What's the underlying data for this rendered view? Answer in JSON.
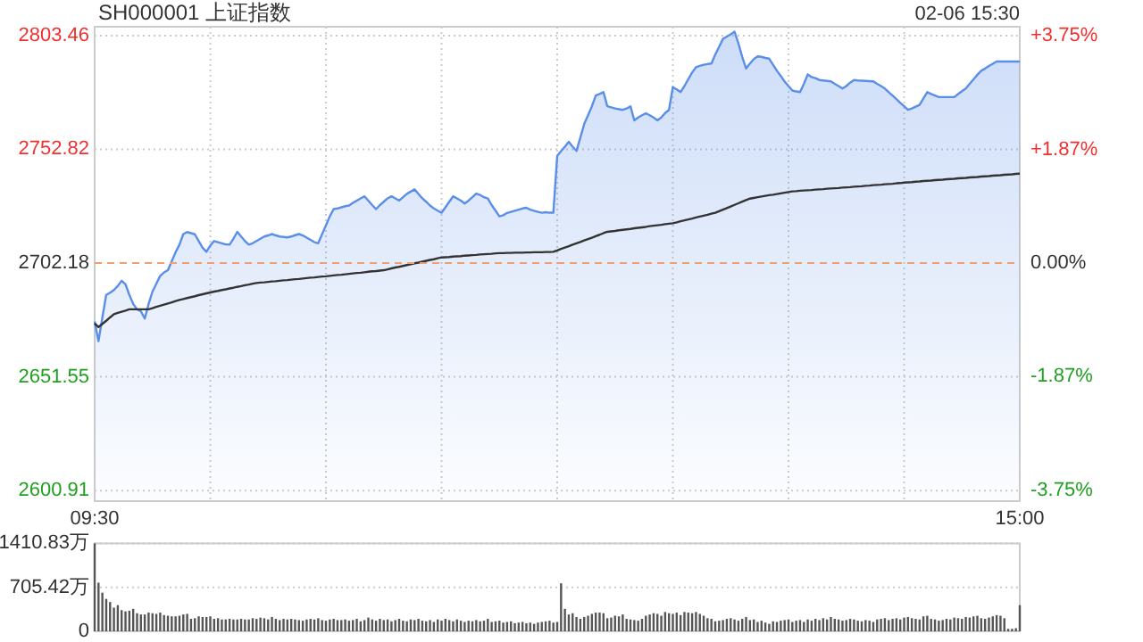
{
  "chart_data": [
    {
      "type": "line",
      "title": "SH000001 上证指数",
      "annotations": [
        "02-06 15:30"
      ],
      "categories": [
        "09:30",
        null,
        null,
        null,
        null,
        null,
        null,
        null,
        null,
        null,
        null,
        null,
        null,
        null,
        null,
        null,
        null,
        null,
        null,
        null,
        null,
        null,
        null,
        null,
        null,
        null,
        null,
        null,
        null,
        null,
        null,
        null,
        null,
        null,
        null,
        null,
        null,
        null,
        null,
        null,
        null,
        null,
        null,
        null,
        null,
        null,
        null,
        null,
        null,
        null,
        null,
        null,
        null,
        null,
        null,
        null,
        null,
        null,
        null,
        null,
        null,
        null,
        null,
        null,
        null,
        null,
        null,
        null,
        null,
        null,
        null,
        null,
        null,
        null,
        null,
        null,
        null,
        null,
        null,
        null,
        null,
        null,
        null,
        null,
        null,
        null,
        null,
        null,
        null,
        null,
        null,
        null,
        null,
        null,
        null,
        null,
        null,
        null,
        null,
        null,
        null,
        null,
        null,
        null,
        null,
        null,
        null,
        null,
        null,
        null,
        null,
        null,
        null,
        null,
        null,
        null,
        null,
        null,
        null,
        null,
        null,
        null,
        null,
        null,
        null,
        null,
        null,
        null,
        null,
        null,
        null,
        null,
        null,
        null,
        null,
        null,
        null,
        null,
        null,
        null,
        null,
        null,
        null,
        null,
        null,
        null,
        null,
        null,
        null,
        null,
        null,
        null,
        null,
        null,
        null,
        null,
        null,
        null,
        null,
        null,
        null,
        null,
        null,
        null,
        null,
        null,
        null,
        null,
        null,
        null,
        null,
        null,
        null,
        null,
        null,
        null,
        null,
        null,
        null,
        null,
        null,
        null,
        null,
        null,
        null,
        null,
        null,
        null,
        null,
        null,
        null,
        null,
        null,
        null,
        null,
        null,
        null,
        null,
        null,
        null,
        null,
        null,
        null,
        null,
        null,
        null,
        null,
        null,
        null,
        null,
        null,
        null,
        null,
        null,
        null,
        null,
        null,
        null,
        null,
        null,
        null,
        null,
        null,
        null,
        null,
        null,
        null,
        null,
        null,
        null,
        null,
        null,
        null,
        null,
        null,
        null,
        null,
        null,
        null,
        null,
        "15:00"
      ],
      "ylim": [
        2596.2,
        2807.4
      ],
      "yticks": [
        2803.46,
        2752.82,
        2702.18,
        2651.55,
        2600.91
      ],
      "y2lim": [
        -3.92,
        3.89
      ],
      "y2ticks": [
        {
          "value": 3.75,
          "label": "+3.75%"
        },
        {
          "value": 1.87,
          "label": "+1.87%"
        },
        {
          "value": 0,
          "label": "0.00%"
        },
        {
          "value": -1.87,
          "label": "-1.87%"
        },
        {
          "value": -3.75,
          "label": "-3.75%"
        }
      ],
      "grid": true,
      "ref_lines": [
        {
          "axis": "y",
          "value": 2702.18,
          "label": null,
          "color": "#f0a070",
          "line_style": "dashed"
        }
      ],
      "series": [
        {
          "type": "area",
          "color": "#5a8ee8",
          "values": [
            2676.2,
            2667.4,
            2678,
            2688,
            2689,
            2690.2,
            2692,
            2694.3,
            2692.7,
            2688,
            2684,
            2681.6,
            2680.7,
            2677.5,
            2684,
            2689.5,
            2693,
            2696.5,
            2698,
            2699,
            2703,
            2707,
            2710.4,
            2715.1,
            2716,
            2715.5,
            2715,
            2712,
            2709,
            2707.2,
            2710,
            2712,
            2711.5,
            2711,
            2710.5,
            2710.4,
            2713,
            2716.1,
            2714,
            2712,
            2710.4,
            2711,
            2712,
            2713,
            2714,
            2714.5,
            2715.1,
            2714.5,
            2714,
            2713.8,
            2713.6,
            2714,
            2714.6,
            2715.1,
            2714.5,
            2713.5,
            2712.5,
            2711.5,
            2711,
            2715,
            2719,
            2723,
            2726.2,
            2726.5,
            2727,
            2727.5,
            2727.8,
            2729,
            2730,
            2731,
            2731.9,
            2730,
            2728,
            2726.2,
            2728,
            2729.5,
            2731,
            2731.9,
            2731,
            2730,
            2731.5,
            2733,
            2734,
            2735,
            2733,
            2731,
            2729.5,
            2727.8,
            2726.5,
            2725.5,
            2724.6,
            2727,
            2729.5,
            2731.9,
            2731,
            2730,
            2728.7,
            2730,
            2731.5,
            2733.1,
            2732.5,
            2731.5,
            2730.9,
            2728,
            2725.5,
            2723,
            2723.5,
            2724.5,
            2725,
            2725.5,
            2726,
            2726.5,
            2726.8,
            2726,
            2725.5,
            2725,
            2724.6,
            2724.8,
            2724.6,
            2724.6,
            2749.9,
            2752,
            2754,
            2756.2,
            2754,
            2752.1,
            2758,
            2764.1,
            2768,
            2772,
            2776.8,
            2777.5,
            2778.3,
            2772,
            2771.5,
            2771,
            2770.7,
            2770.4,
            2771,
            2772,
            2765.7,
            2767,
            2768,
            2768.9,
            2768,
            2767,
            2765.7,
            2767,
            2769,
            2770.4,
            2780.5,
            2779.5,
            2778.3,
            2781,
            2784,
            2787,
            2789.4,
            2790,
            2790.5,
            2790.8,
            2791,
            2795,
            2798.5,
            2802,
            2803,
            2804,
            2805.2,
            2800,
            2794,
            2788.8,
            2791,
            2793,
            2794.2,
            2794,
            2793.5,
            2793.2,
            2790.5,
            2787.8,
            2785.5,
            2783,
            2781,
            2779,
            2778.6,
            2778.3,
            2782,
            2786.2,
            2785,
            2784.5,
            2783.7,
            2783.5,
            2783.3,
            2783.1,
            2782,
            2781,
            2779.9,
            2781,
            2782.5,
            2783.7,
            2783.5,
            2783.4,
            2783.3,
            2783.2,
            2783.1,
            2782,
            2781,
            2779.9,
            2778.3,
            2776.8,
            2775.2,
            2773.5,
            2772,
            2770.4,
            2771,
            2771.8,
            2772.6,
            2775.5,
            2778.3,
            2777.5,
            2776.8,
            2776.1,
            2776.1,
            2776.1,
            2776.1,
            2776.1,
            2777.4,
            2778.7,
            2779.9,
            2782,
            2784,
            2786,
            2787.8,
            2788.8,
            2789.9,
            2790.9,
            2791.9,
            2791.9,
            2791.9,
            2791.9,
            2791.9,
            2791.9,
            2791.9
          ]
        },
        {
          "color": "#333333",
          "values": [
            2675.3,
            2673.7,
            2675.1,
            2676.5,
            2678,
            2679.4,
            2680,
            2680.5,
            2681,
            2681.6,
            2681.6,
            2681.6,
            2681.6,
            2681.6,
            2681.6,
            2682.1,
            2682.7,
            2683.2,
            2683.7,
            2684.2,
            2684.7,
            2685.3,
            2685.8,
            2686.2,
            2686.6,
            2687,
            2687.4,
            2687.9,
            2688.3,
            2688.7,
            2689.1,
            2689.5,
            2689.8,
            2690.2,
            2690.5,
            2690.9,
            2691.2,
            2691.6,
            2691.9,
            2692.3,
            2692.6,
            2693,
            2693.3,
            2693.5,
            2693.6,
            2693.8,
            2694,
            2694.1,
            2694.3,
            2694.5,
            2694.6,
            2694.8,
            2695,
            2695.1,
            2695.3,
            2695.5,
            2695.7,
            2695.8,
            2696,
            2696.2,
            2696.3,
            2696.5,
            2696.7,
            2696.9,
            2697,
            2697.2,
            2697.4,
            2697.6,
            2697.8,
            2697.9,
            2698.1,
            2698.3,
            2698.5,
            2698.6,
            2698.8,
            2699,
            2699.4,
            2699.8,
            2700.2,
            2700.5,
            2700.9,
            2701.3,
            2701.7,
            2702.1,
            2702.4,
            2702.8,
            2703.2,
            2703.6,
            2703.9,
            2704.3,
            2704.7,
            2704.8,
            2704.9,
            2705.1,
            2705.2,
            2705.3,
            2705.5,
            2705.6,
            2705.7,
            2705.8,
            2706,
            2706.1,
            2706.2,
            2706.3,
            2706.5,
            2706.6,
            2706.6,
            2706.7,
            2706.7,
            2706.8,
            2706.8,
            2706.8,
            2706.9,
            2706.9,
            2707,
            2707,
            2707,
            2707.1,
            2707.1,
            2707.2,
            2707.8,
            2708.5,
            2709.1,
            2709.7,
            2710.4,
            2711,
            2711.6,
            2712.3,
            2712.9,
            2713.5,
            2714.2,
            2714.8,
            2715.5,
            2716.1,
            2716.3,
            2716.5,
            2716.8,
            2717,
            2717.2,
            2717.4,
            2717.7,
            2717.9,
            2718.1,
            2718.3,
            2718.6,
            2718.8,
            2719,
            2719.2,
            2719.5,
            2719.7,
            2719.9,
            2720.3,
            2720.8,
            2721.2,
            2721.6,
            2722,
            2722.5,
            2722.9,
            2723.3,
            2723.7,
            2724.2,
            2724.6,
            2725.3,
            2726,
            2726.7,
            2727.4,
            2728.1,
            2728.8,
            2729.5,
            2730.2,
            2730.9,
            2731.2,
            2731.5,
            2731.8,
            2732.1,
            2732.4,
            2732.6,
            2732.9,
            2733.2,
            2733.5,
            2733.8,
            2734.1,
            2734.2,
            2734.4,
            2734.5,
            2734.6,
            2734.7,
            2734.9,
            2735,
            2735.1,
            2735.3,
            2735.4,
            2735.5,
            2735.6,
            2735.8,
            2735.9,
            2736,
            2736.2,
            2736.3,
            2736.4,
            2736.6,
            2736.7,
            2736.9,
            2737,
            2737.1,
            2737.3,
            2737.4,
            2737.5,
            2737.7,
            2737.8,
            2738,
            2738.1,
            2738.2,
            2738.4,
            2738.5,
            2738.7,
            2738.8,
            2738.9,
            2739.1,
            2739.2,
            2739.3,
            2739.5,
            2739.6,
            2739.7,
            2739.9,
            2740,
            2740.1,
            2740.3,
            2740.4,
            2740.5,
            2740.7,
            2740.8,
            2740.9,
            2741.1,
            2741.2,
            2741.3,
            2741.5,
            2741.6,
            2741.7,
            2741.9,
            2742
          ]
        }
      ]
    },
    {
      "type": "bar",
      "ylim": [
        0,
        1410.83
      ],
      "yticks": [
        {
          "value": 1410.83,
          "label": "1410.83万"
        },
        {
          "value": 705.42,
          "label": "705.42万"
        },
        0
      ],
      "grid": "y",
      "tick_labels": "y",
      "categories": [
        null,
        null,
        null,
        null,
        null,
        null,
        null,
        null,
        null,
        null,
        null,
        null,
        null,
        null,
        null,
        null,
        null,
        null,
        null,
        null,
        null,
        null,
        null,
        null,
        null,
        null,
        null,
        null,
        null,
        null,
        null,
        null,
        null,
        null,
        null,
        null,
        null,
        null,
        null,
        null,
        null,
        null,
        null,
        null,
        null,
        null,
        null,
        null,
        null,
        null,
        null,
        null,
        null,
        null,
        null,
        null,
        null,
        null,
        null,
        null,
        null,
        null,
        null,
        null,
        null,
        null,
        null,
        null,
        null,
        null,
        null,
        null,
        null,
        null,
        null,
        null,
        null,
        null,
        null,
        null,
        null,
        null,
        null,
        null,
        null,
        null,
        null,
        null,
        null,
        null,
        null,
        null,
        null,
        null,
        null,
        null,
        null,
        null,
        null,
        null,
        null,
        null,
        null,
        null,
        null,
        null,
        null,
        null,
        null,
        null,
        null,
        null,
        null,
        null,
        null,
        null,
        null,
        null,
        null,
        null,
        null,
        null,
        null,
        null,
        null,
        null,
        null,
        null,
        null,
        null,
        null,
        null,
        null,
        null,
        null,
        null,
        null,
        null,
        null,
        null,
        null,
        null,
        null,
        null,
        null,
        null,
        null,
        null,
        null,
        null,
        null,
        null,
        null,
        null,
        null,
        null,
        null,
        null,
        null,
        null,
        null,
        null,
        null,
        null,
        null,
        null,
        null,
        null,
        null,
        null,
        null,
        null,
        null,
        null,
        null,
        null,
        null,
        null,
        null,
        null,
        null,
        null,
        null,
        null,
        null,
        null,
        null,
        null,
        null,
        null,
        null,
        null,
        null,
        null,
        null,
        null,
        null,
        null,
        null,
        null,
        null,
        null,
        null,
        null,
        null,
        null,
        null,
        null,
        null,
        null,
        null,
        null,
        null,
        null,
        null,
        null,
        null,
        null,
        null,
        null,
        null,
        null,
        null,
        null,
        null,
        null,
        null,
        null,
        null,
        null,
        null,
        null,
        null,
        null,
        null,
        null,
        null,
        null,
        null,
        null,
        null
      ],
      "series": [
        {
          "color": "#555555",
          "values": [
            1410,
            780,
            620,
            520,
            470,
            380,
            420,
            340,
            320,
            330,
            360,
            290,
            270,
            270,
            300,
            290,
            280,
            300,
            260,
            250,
            240,
            240,
            250,
            270,
            280,
            200,
            210,
            240,
            230,
            230,
            240,
            200,
            210,
            190,
            190,
            200,
            190,
            190,
            200,
            190,
            190,
            210,
            200,
            220,
            210,
            190,
            230,
            200,
            180,
            200,
            190,
            200,
            190,
            180,
            170,
            190,
            200,
            190,
            210,
            180,
            170,
            190,
            200,
            180,
            180,
            190,
            170,
            180,
            200,
            160,
            180,
            220,
            190,
            170,
            200,
            180,
            190,
            160,
            180,
            200,
            170,
            160,
            190,
            180,
            200,
            170,
            160,
            180,
            150,
            190,
            170,
            200,
            180,
            160,
            190,
            170,
            150,
            170,
            160,
            180,
            160,
            170,
            200,
            150,
            160,
            170,
            140,
            150,
            160,
            130,
            140,
            150,
            130,
            140,
            120,
            140,
            150,
            160,
            170,
            140,
            150,
            770,
            360,
            270,
            290,
            230,
            200,
            230,
            250,
            280,
            300,
            300,
            290,
            210,
            220,
            250,
            240,
            270,
            200,
            190,
            180,
            170,
            200,
            250,
            270,
            290,
            280,
            250,
            310,
            290,
            280,
            300,
            260,
            310,
            300,
            290,
            310,
            280,
            250,
            210,
            200,
            160,
            170,
            180,
            200,
            210,
            190,
            170,
            200,
            230,
            180,
            190,
            150,
            170,
            140,
            120,
            160,
            150,
            170,
            180,
            190,
            150,
            170,
            180,
            150,
            190,
            170,
            200,
            180,
            210,
            190,
            230,
            200,
            190,
            170,
            180,
            200,
            190,
            170,
            160,
            180,
            170,
            150,
            190,
            200,
            210,
            180,
            200,
            210,
            190,
            220,
            230,
            210,
            200,
            190,
            240,
            250,
            200,
            190,
            170,
            180,
            200,
            190,
            220,
            210,
            200,
            230,
            220,
            240,
            250,
            210,
            200,
            220,
            240,
            260,
            250,
            210,
            40,
            40,
            50,
            420
          ]
        }
      ]
    }
  ]
}
